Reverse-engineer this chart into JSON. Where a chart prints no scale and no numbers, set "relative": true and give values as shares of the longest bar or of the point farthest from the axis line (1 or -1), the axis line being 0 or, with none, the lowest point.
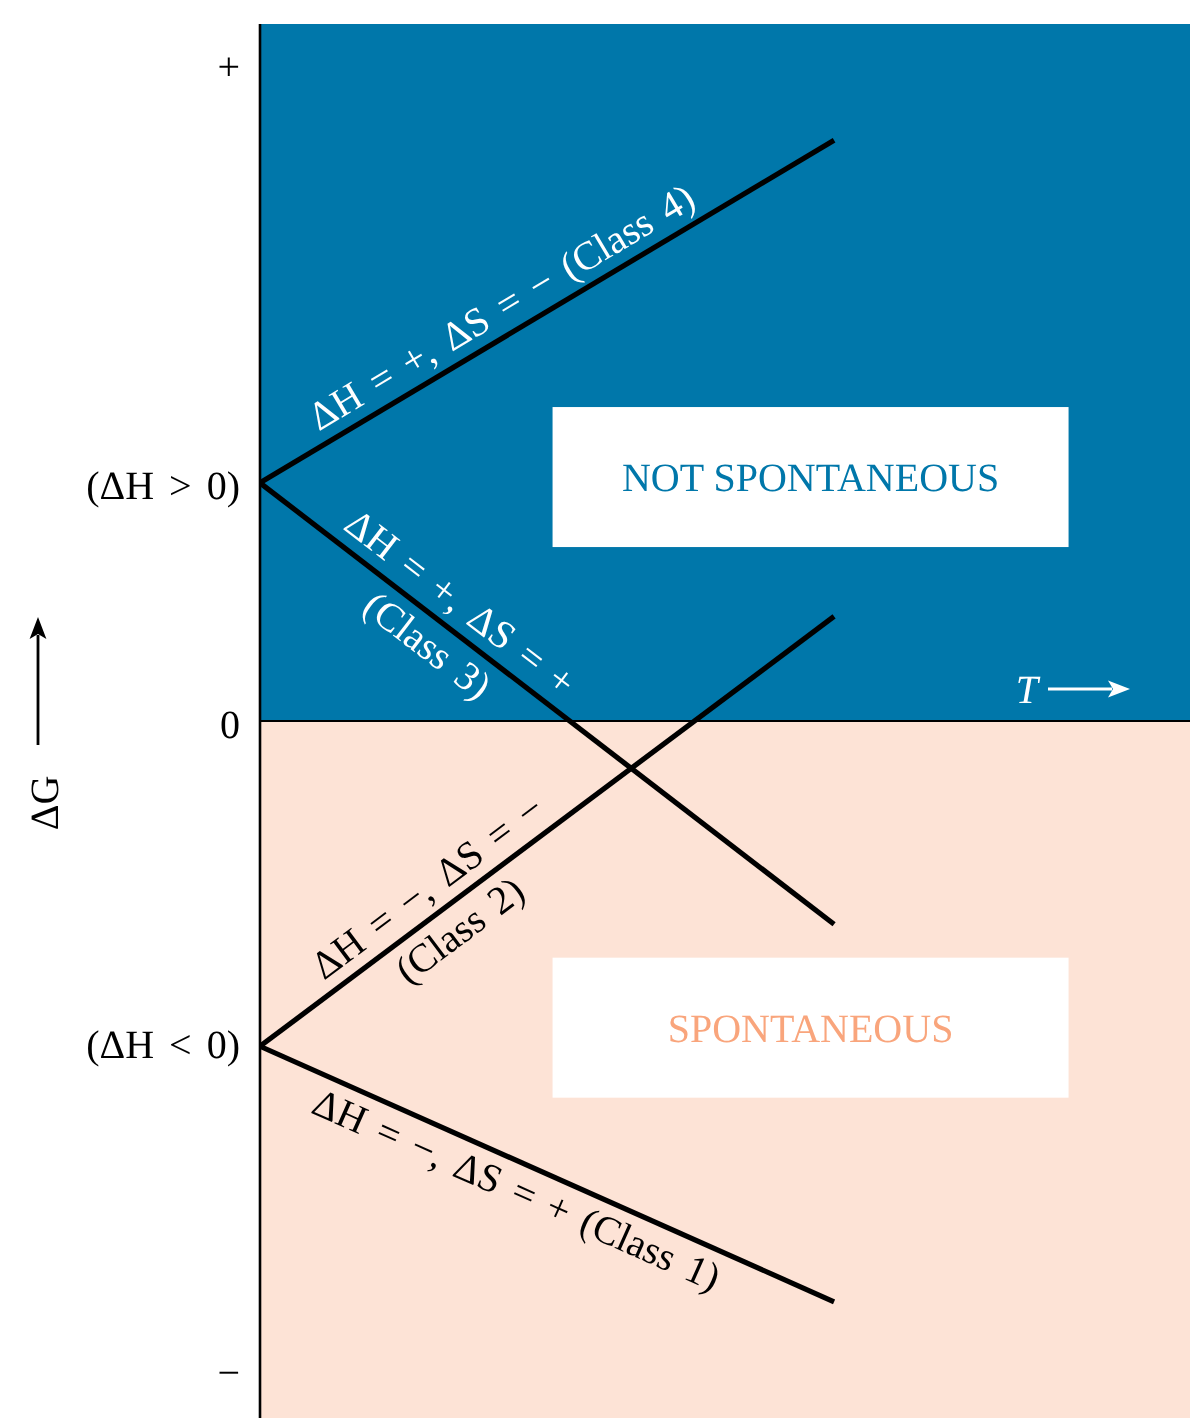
{
  "chart_data": {
    "type": "line",
    "xlabel": "T",
    "ylabel": "ΔG",
    "relative": true,
    "categories": [
      null,
      null
    ],
    "series": [
      {
        "name": "ΔH = +, ΔS = − (Class 4)",
        "color": "#000000",
        "values": [
          0.41,
          1
        ]
      },
      {
        "name": "ΔH = +, ΔS = + (Class 3)",
        "color": "#000000",
        "values": [
          0.41,
          -0.35
        ]
      },
      {
        "name": "ΔH = −, ΔS = − (Class 2)",
        "color": "#000000",
        "values": [
          -0.56,
          0.18
        ]
      },
      {
        "name": "ΔH = −, ΔS = + (Class 1)",
        "color": "#000000",
        "values": [
          -0.56,
          -1
        ]
      }
    ],
    "bands": [
      {
        "axis": "y",
        "from": 0,
        "to": 1.2,
        "label": "NOT SPONTANEOUS",
        "color": "#0077aa"
      },
      {
        "axis": "y",
        "from": -1.2,
        "to": 0,
        "label": "SPONTANEOUS",
        "color": "#fde3d6"
      }
    ],
    "annotations": [
      "+",
      "(ΔH > 0)",
      "0",
      "(ΔH < 0)",
      "−"
    ]
  }
}
